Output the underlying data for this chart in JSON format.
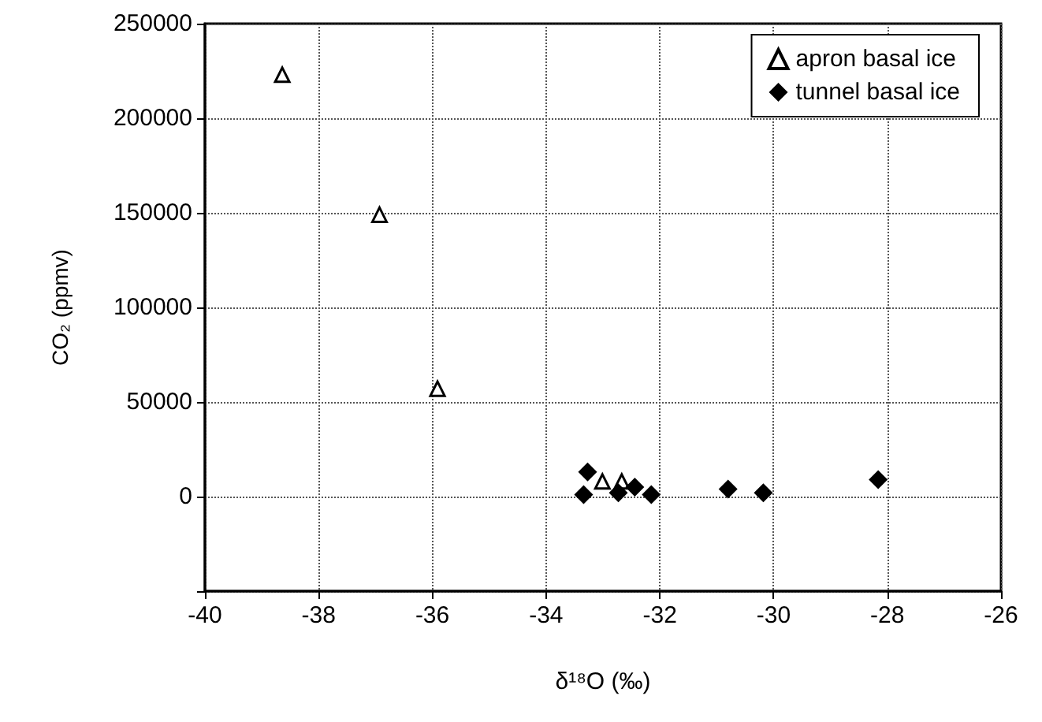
{
  "chart_data": {
    "type": "scatter",
    "xlabel": "δ¹⁸O (‰)",
    "ylabel": "CO₂ (ppmv)",
    "xlim": [
      -40,
      -26
    ],
    "xticks": [
      -40,
      -38,
      -36,
      -34,
      -32,
      -30,
      -28,
      -26
    ],
    "ylim": [
      -50000,
      250000
    ],
    "yticks": [
      {
        "value": -50000,
        "label": null
      },
      0,
      50000,
      100000,
      150000,
      200000,
      250000
    ],
    "grid": true,
    "legend": "top right",
    "series": [
      {
        "name": "apron basal ice",
        "color": "#000000",
        "marker": "triangle",
        "x": [
          -38.64,
          -36.93,
          -35.91,
          -33.01,
          -32.67
        ],
        "values": [
          223000,
          149000,
          57000,
          8000,
          8000
        ]
      },
      {
        "name": "tunnel basal ice",
        "color": "#000000",
        "marker": "diamond",
        "x": [
          -33.27,
          -33.34,
          -32.73,
          -32.44,
          -32.15,
          -30.8,
          -30.18,
          -28.16
        ],
        "values": [
          13000,
          1000,
          2000,
          5000,
          1000,
          4000,
          2000,
          9000
        ]
      }
    ]
  }
}
